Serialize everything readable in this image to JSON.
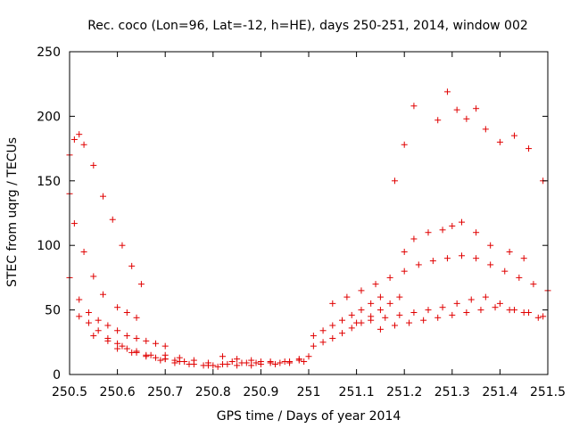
{
  "chart_data": {
    "type": "scatter",
    "title": "Rec. coco (Lon=96, Lat=-12, h=HE), days 250-251, 2014, window 002",
    "xlabel": "GPS time / Days of year 2014",
    "ylabel": "STEC from uqrg / TECUs",
    "xlim": [
      250.5,
      251.5
    ],
    "ylim": [
      0,
      250
    ],
    "x_ticks": [
      "250.5",
      "250.6",
      "250.7",
      "250.8",
      "250.9",
      "251",
      "251.1",
      "251.2",
      "251.3",
      "251.4",
      "251.5"
    ],
    "y_ticks": [
      "0",
      "50",
      "100",
      "150",
      "200",
      "250"
    ],
    "grid": false,
    "marker": "+",
    "colors": {
      "series": "#e00000",
      "axes": "#000000"
    },
    "series": [
      {
        "x": [
          250.5,
          250.51,
          250.52,
          250.53,
          250.55,
          250.57,
          250.59,
          250.61,
          250.63,
          250.65,
          250.5,
          250.51,
          250.53,
          250.55,
          250.57,
          250.6,
          250.62,
          250.64,
          250.5,
          250.52,
          250.54,
          250.56,
          250.58,
          250.6,
          250.62,
          250.64,
          250.66,
          250.68,
          250.7,
          250.52,
          250.54,
          250.56,
          250.58,
          250.6,
          250.62,
          250.64,
          250.66,
          250.68,
          250.7,
          250.72,
          250.74,
          250.55,
          250.58,
          250.61,
          250.64,
          250.67,
          250.7,
          250.73,
          250.76,
          250.79,
          250.6,
          250.63,
          250.66,
          250.69,
          250.72,
          250.75,
          250.78,
          250.81,
          250.7,
          250.73,
          250.76,
          250.79,
          250.82,
          250.85,
          250.88,
          250.8,
          250.83,
          250.86,
          250.89,
          250.92,
          250.95,
          250.98,
          250.82,
          250.85,
          250.88,
          250.9,
          250.92,
          250.94,
          250.96,
          250.98,
          251.0,
          250.84,
          250.87,
          250.9,
          250.93,
          250.96,
          250.99,
          251.01,
          251.03,
          251.05,
          251.07,
          251.09,
          251.11,
          251.13,
          251.15,
          251.17,
          251.19,
          251.01,
          251.03,
          251.05,
          251.07,
          251.09,
          251.11,
          251.13,
          251.15,
          251.05,
          251.08,
          251.11,
          251.14,
          251.17,
          251.2,
          251.23,
          251.26,
          251.29,
          251.32,
          251.35,
          251.38,
          251.41,
          251.44,
          251.47,
          251.5,
          251.1,
          251.13,
          251.16,
          251.19,
          251.22,
          251.25,
          251.28,
          251.31,
          251.34,
          251.37,
          251.4,
          251.43,
          251.46,
          251.49,
          251.15,
          251.18,
          251.21,
          251.24,
          251.27,
          251.3,
          251.33,
          251.36,
          251.39,
          251.42,
          251.45,
          251.48,
          251.2,
          251.22,
          251.25,
          251.28,
          251.3,
          251.32,
          251.35,
          251.38,
          251.42,
          251.45,
          251.18,
          251.2,
          251.22,
          251.27,
          251.29,
          251.31,
          251.33,
          251.35,
          251.37,
          251.4,
          251.43,
          251.46,
          251.49
        ],
        "y": [
          170,
          182,
          186,
          178,
          162,
          138,
          120,
          100,
          84,
          70,
          140,
          117,
          95,
          76,
          62,
          52,
          48,
          44,
          75,
          58,
          48,
          42,
          38,
          34,
          30,
          28,
          26,
          24,
          22,
          45,
          40,
          34,
          28,
          24,
          20,
          17,
          15,
          13,
          12,
          11,
          10,
          30,
          26,
          22,
          18,
          15,
          12,
          10,
          8,
          7,
          20,
          17,
          14,
          11,
          9,
          8,
          7,
          6,
          15,
          13,
          11,
          9,
          8,
          7,
          7,
          7,
          8,
          9,
          9,
          10,
          10,
          11,
          14,
          12,
          11,
          10,
          9,
          9,
          10,
          12,
          14,
          10,
          9,
          8,
          8,
          9,
          10,
          22,
          25,
          28,
          32,
          36,
          40,
          45,
          50,
          55,
          60,
          30,
          34,
          38,
          42,
          46,
          50,
          55,
          60,
          55,
          60,
          65,
          70,
          75,
          80,
          85,
          88,
          90,
          92,
          90,
          85,
          80,
          75,
          70,
          65,
          40,
          42,
          44,
          46,
          48,
          50,
          52,
          55,
          58,
          60,
          55,
          50,
          48,
          45,
          35,
          38,
          40,
          42,
          44,
          46,
          48,
          50,
          52,
          50,
          48,
          44,
          95,
          105,
          110,
          112,
          115,
          118,
          110,
          100,
          95,
          90,
          150,
          178,
          208,
          197,
          219,
          205,
          198,
          206,
          190,
          180,
          185,
          175,
          150
        ]
      }
    ]
  }
}
